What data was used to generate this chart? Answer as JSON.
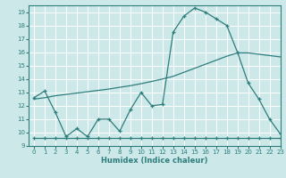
{
  "xlabel": "Humidex (Indice chaleur)",
  "bg_color": "#cce8e8",
  "line_color": "#2e7d7d",
  "grid_color": "#ffffff",
  "xmin": -0.5,
  "xmax": 23,
  "ymin": 9,
  "ymax": 19.5,
  "yticks": [
    9,
    10,
    11,
    12,
    13,
    14,
    15,
    16,
    17,
    18,
    19
  ],
  "xticks": [
    0,
    1,
    2,
    3,
    4,
    5,
    6,
    7,
    8,
    9,
    10,
    11,
    12,
    13,
    14,
    15,
    16,
    17,
    18,
    19,
    20,
    21,
    22,
    23
  ],
  "line1_x": [
    0,
    1,
    2,
    3,
    4,
    5,
    6,
    7,
    8,
    9,
    10,
    11,
    12,
    13,
    14,
    15,
    16,
    17,
    18,
    19,
    20,
    21,
    22,
    23
  ],
  "line1_y": [
    12.6,
    13.1,
    11.5,
    9.7,
    10.3,
    9.7,
    11.0,
    11.0,
    10.1,
    11.7,
    13.0,
    12.0,
    12.1,
    17.5,
    18.7,
    19.3,
    19.0,
    18.5,
    18.0,
    16.0,
    13.7,
    12.5,
    11.0,
    9.9
  ],
  "line2_x": [
    0,
    1,
    2,
    3,
    4,
    5,
    6,
    7,
    8,
    9,
    10,
    11,
    12,
    13,
    14,
    15,
    16,
    17,
    18,
    19,
    20,
    21,
    22,
    23
  ],
  "line2_y": [
    12.5,
    12.6,
    12.75,
    12.85,
    12.95,
    13.05,
    13.15,
    13.25,
    13.38,
    13.5,
    13.65,
    13.82,
    14.0,
    14.2,
    14.5,
    14.8,
    15.1,
    15.4,
    15.7,
    15.95,
    15.95,
    15.85,
    15.75,
    15.65
  ],
  "line3_x": [
    0,
    1,
    2,
    3,
    4,
    5,
    6,
    7,
    8,
    9,
    10,
    11,
    12,
    13,
    14,
    15,
    16,
    17,
    18,
    19,
    20,
    21,
    22,
    23
  ],
  "line3_y": [
    9.6,
    9.6,
    9.6,
    9.6,
    9.6,
    9.6,
    9.6,
    9.6,
    9.6,
    9.6,
    9.6,
    9.6,
    9.6,
    9.6,
    9.6,
    9.6,
    9.6,
    9.6,
    9.6,
    9.6,
    9.6,
    9.6,
    9.6,
    9.6
  ]
}
